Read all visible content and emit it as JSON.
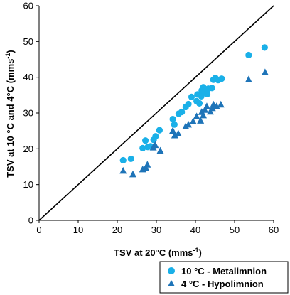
{
  "chart_data": {
    "type": "scatter",
    "xlabel": "TSV at 20°C (mms",
    "xlabel_sup": "-1",
    "xlabel_close": ")",
    "ylabel": "TSV at 10 °C and 4°C (mms",
    "ylabel_sup": "-1",
    "ylabel_close": ")",
    "xlim": [
      0,
      60
    ],
    "ylim": [
      0,
      60
    ],
    "x_ticks": [
      "0",
      "10",
      "20",
      "30",
      "40",
      "50",
      "60"
    ],
    "y_ticks": [
      "0",
      "10",
      "20",
      "30",
      "40",
      "50",
      "60"
    ],
    "grid": false,
    "legend_position": "bottom-right, outside plot",
    "reference_line": {
      "from": [
        0,
        0
      ],
      "to": [
        60,
        60
      ],
      "color": "#000000"
    },
    "series": [
      {
        "name": "10 °C - Metalimnion",
        "marker": "circle",
        "color": "#1ab0e8",
        "points": [
          [
            21.5,
            16.8
          ],
          [
            23.5,
            17.2
          ],
          [
            26.5,
            20.2
          ],
          [
            27.2,
            22.3
          ],
          [
            27.8,
            20.5
          ],
          [
            28.5,
            20.7
          ],
          [
            29.3,
            22.5
          ],
          [
            29.8,
            23.5
          ],
          [
            30.8,
            25.2
          ],
          [
            34.2,
            28.3
          ],
          [
            34.6,
            26.8
          ],
          [
            35.7,
            29.8
          ],
          [
            36.5,
            30.3
          ],
          [
            37.5,
            31.7
          ],
          [
            38.2,
            32.5
          ],
          [
            39.0,
            34.5
          ],
          [
            40.3,
            33.3
          ],
          [
            40.5,
            35.2
          ],
          [
            41.0,
            32.7
          ],
          [
            41.5,
            34.7
          ],
          [
            41.6,
            36.3
          ],
          [
            42.0,
            37.2
          ],
          [
            42.4,
            35.7
          ],
          [
            43.0,
            35.3
          ],
          [
            43.3,
            36.8
          ],
          [
            44.2,
            37.0
          ],
          [
            44.6,
            39.3
          ],
          [
            45.1,
            39.8
          ],
          [
            45.8,
            39.2
          ],
          [
            46.7,
            39.6
          ],
          [
            53.6,
            46.2
          ],
          [
            57.7,
            48.3
          ]
        ]
      },
      {
        "name": "4 °C - Hypolimnion",
        "marker": "triangle",
        "color": "#1e74b8",
        "points": [
          [
            21.5,
            13.8
          ],
          [
            24.0,
            12.8
          ],
          [
            26.5,
            14.2
          ],
          [
            27.3,
            14.6
          ],
          [
            27.7,
            15.5
          ],
          [
            29.2,
            20.3
          ],
          [
            29.7,
            21.0
          ],
          [
            31.0,
            19.4
          ],
          [
            34.2,
            25.0
          ],
          [
            34.7,
            23.7
          ],
          [
            35.6,
            24.2
          ],
          [
            37.5,
            26.2
          ],
          [
            38.2,
            26.7
          ],
          [
            39.4,
            27.6
          ],
          [
            40.3,
            29.0
          ],
          [
            41.3,
            27.8
          ],
          [
            41.6,
            30.2
          ],
          [
            42.0,
            29.3
          ],
          [
            42.4,
            30.8
          ],
          [
            42.9,
            31.8
          ],
          [
            43.8,
            30.3
          ],
          [
            44.3,
            31.3
          ],
          [
            44.6,
            32.3
          ],
          [
            45.4,
            31.8
          ],
          [
            46.5,
            32.3
          ],
          [
            53.6,
            39.3
          ],
          [
            57.8,
            41.3
          ]
        ]
      }
    ]
  }
}
